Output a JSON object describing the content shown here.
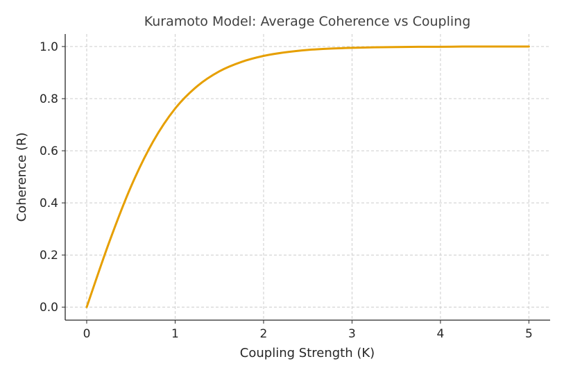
{
  "chart_data": {
    "type": "line",
    "title": "Kuramoto Model: Average Coherence vs Coupling",
    "xlabel": "Coupling Strength (K)",
    "ylabel": "Coherence (R)",
    "xlim": [
      -0.243,
      5.24
    ],
    "ylim": [
      -0.05,
      1.048
    ],
    "xticks": [
      "0",
      "1",
      "2",
      "3",
      "4",
      "5"
    ],
    "yticks": [
      "0.0",
      "0.2",
      "0.4",
      "0.6",
      "0.8",
      "1.0"
    ],
    "grid": true,
    "series": [
      {
        "name": "Coherence",
        "color": "#E69F00",
        "x": [
          0,
          0.25,
          0.5,
          0.75,
          1,
          1.25,
          1.5,
          1.75,
          2,
          2.25,
          2.5,
          2.75,
          3,
          3.25,
          3.5,
          3.75,
          4,
          4.25,
          4.5,
          4.75,
          5
        ],
        "y": [
          0,
          0.245,
          0.462,
          0.635,
          0.762,
          0.848,
          0.905,
          0.941,
          0.964,
          0.978,
          0.987,
          0.992,
          0.995,
          0.997,
          0.998,
          0.999,
          0.999,
          1.0,
          1.0,
          1.0,
          1.0
        ]
      }
    ]
  }
}
